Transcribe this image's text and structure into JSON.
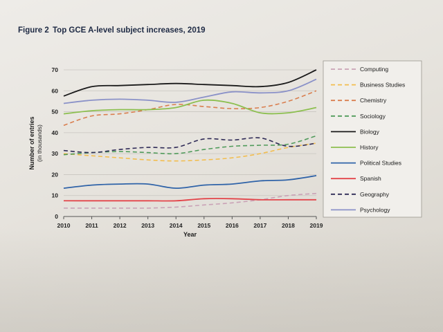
{
  "figure": {
    "label": "Figure 2",
    "title": "Top GCE A-level subject increases, 2019"
  },
  "chart_data": {
    "type": "line",
    "title": "Top GCE A-level subject increases, 2019",
    "xlabel": "Year",
    "ylabel": "Number of entries",
    "ylabel_sub": "(in thousands)",
    "x": [
      2010,
      2011,
      2012,
      2013,
      2014,
      2015,
      2016,
      2017,
      2018,
      2019
    ],
    "ylim": [
      0,
      70
    ],
    "yticks": [
      0,
      10,
      20,
      30,
      40,
      50,
      60,
      70
    ],
    "grid": true,
    "legend_position": "right",
    "series": [
      {
        "name": "Computing",
        "color": "#c9a2b6",
        "dash": true,
        "values": [
          4,
          4,
          4,
          4,
          4.5,
          5.5,
          6.5,
          8,
          10,
          11
        ]
      },
      {
        "name": "Business Studies",
        "color": "#f2bd4e",
        "dash": true,
        "values": [
          30,
          29,
          28,
          27,
          26.5,
          27,
          28,
          30,
          33,
          35
        ]
      },
      {
        "name": "Chemistry",
        "color": "#d97e4e",
        "dash": true,
        "values": [
          43.5,
          48,
          49,
          51,
          53.5,
          52.5,
          51.5,
          52,
          55,
          60
        ]
      },
      {
        "name": "Sociology",
        "color": "#4f9a5a",
        "dash": true,
        "values": [
          29.5,
          30.5,
          31,
          30.5,
          30,
          32,
          33.5,
          34,
          34.5,
          38.5
        ]
      },
      {
        "name": "Biology",
        "color": "#1a1a1a",
        "dash": false,
        "values": [
          57.5,
          62,
          62.5,
          63,
          63.5,
          63,
          62.5,
          62,
          64,
          70
        ]
      },
      {
        "name": "History",
        "color": "#8cbf4f",
        "dash": false,
        "values": [
          49,
          50.5,
          51,
          51,
          52,
          55.5,
          54,
          49.5,
          49.5,
          52
        ]
      },
      {
        "name": "Political Studies",
        "color": "#2f63a8",
        "dash": false,
        "values": [
          13.5,
          15,
          15.5,
          15.5,
          13.5,
          15,
          15.5,
          17,
          17.5,
          19.5
        ]
      },
      {
        "name": "Spanish",
        "color": "#e3454a",
        "dash": false,
        "values": [
          7.5,
          7.5,
          7.5,
          7.5,
          7.5,
          8.5,
          8.5,
          8,
          8,
          8
        ]
      },
      {
        "name": "Geography",
        "color": "#2e2a56",
        "dash": true,
        "values": [
          31.5,
          30.5,
          32,
          33,
          33,
          37,
          36.5,
          37.5,
          33.5,
          35
        ]
      },
      {
        "name": "Psychology",
        "color": "#8a91c8",
        "dash": false,
        "values": [
          54,
          55.5,
          56,
          55.5,
          54.5,
          57,
          59.5,
          59,
          60,
          65.5
        ]
      }
    ]
  }
}
